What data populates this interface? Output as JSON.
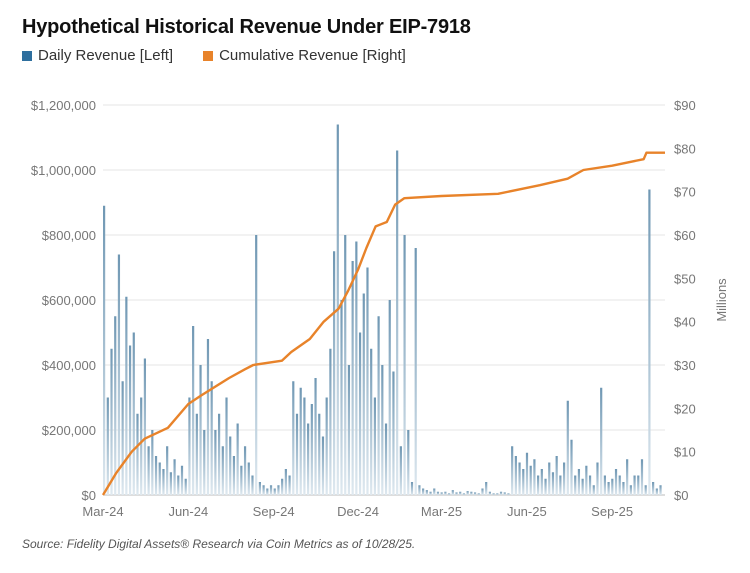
{
  "chart_data": {
    "type": "bar+line",
    "title": "Hypothetical Historical Revenue Under EIP-7918",
    "legend": {
      "placement": "top-left",
      "items": [
        {
          "label": "Daily Revenue [Left]",
          "color": "#2e6f9e"
        },
        {
          "label": "Cumulative Revenue [Right]",
          "color": "#e8832a"
        }
      ]
    },
    "left_axis": {
      "ylim": [
        0,
        1200000
      ],
      "ticks": [
        "$0",
        "$200,000",
        "$400,000",
        "$600,000",
        "$800,000",
        "$1,000,000",
        "$1,200,000"
      ]
    },
    "right_axis": {
      "ylim": [
        0,
        90
      ],
      "label": "Millions",
      "ticks": [
        "$0",
        "$10",
        "$20",
        "$30",
        "$40",
        "$50",
        "$60",
        "$70",
        "$80",
        "$90"
      ]
    },
    "x_axis": {
      "range": [
        "2024-03-01",
        "2025-10-28"
      ],
      "ticks": [
        {
          "label": "Mar-24",
          "date": "2024-03-01"
        },
        {
          "label": "Jun-24",
          "date": "2024-06-01"
        },
        {
          "label": "Sep-24",
          "date": "2024-09-01"
        },
        {
          "label": "Dec-24",
          "date": "2024-12-01"
        },
        {
          "label": "Mar-25",
          "date": "2025-03-01"
        },
        {
          "label": "Jun-25",
          "date": "2025-06-01"
        },
        {
          "label": "Sep-25",
          "date": "2025-09-01"
        }
      ]
    },
    "grid": "horizontal",
    "series": [
      {
        "name": "Daily Revenue [Left]",
        "type": "bar",
        "color": "#8fb2c9",
        "start_date": "2024-03-01",
        "step_days": 4,
        "unit": "USD thousands",
        "values": [
          890,
          300,
          450,
          550,
          740,
          350,
          610,
          460,
          500,
          250,
          300,
          420,
          150,
          200,
          120,
          100,
          80,
          150,
          70,
          110,
          60,
          90,
          50,
          300,
          520,
          250,
          400,
          200,
          480,
          350,
          200,
          250,
          150,
          300,
          180,
          120,
          220,
          90,
          150,
          100,
          60,
          800,
          40,
          30,
          20,
          30,
          20,
          30,
          50,
          80,
          60,
          350,
          250,
          330,
          300,
          220,
          280,
          360,
          250,
          180,
          300,
          450,
          750,
          1140,
          600,
          800,
          400,
          720,
          780,
          500,
          620,
          700,
          450,
          300,
          550,
          400,
          220,
          600,
          380,
          1060,
          150,
          800,
          200,
          40,
          760,
          30,
          20,
          15,
          10,
          20,
          10,
          8,
          10,
          5,
          15,
          8,
          10,
          5,
          12,
          10,
          8,
          5,
          20,
          40,
          10,
          5,
          5,
          10,
          8,
          5,
          150,
          120,
          100,
          80,
          130,
          90,
          110,
          60,
          80,
          50,
          100,
          70,
          120,
          60,
          100,
          290,
          170,
          60,
          80,
          50,
          90,
          60,
          30,
          100,
          330,
          60,
          40,
          50,
          80,
          60,
          40,
          110,
          30,
          60,
          60,
          110,
          30,
          940,
          40,
          20,
          30
        ]
      },
      {
        "name": "Cumulative Revenue [Right]",
        "type": "line",
        "color": "#e8832a",
        "unit": "USD millions",
        "points": [
          [
            "2024-03-01",
            0
          ],
          [
            "2024-03-15",
            5
          ],
          [
            "2024-04-01",
            10
          ],
          [
            "2024-04-15",
            13
          ],
          [
            "2024-05-10",
            15.5
          ],
          [
            "2024-06-01",
            21
          ],
          [
            "2024-06-15",
            23
          ],
          [
            "2024-07-15",
            27
          ],
          [
            "2024-08-01",
            29
          ],
          [
            "2024-08-10",
            30
          ],
          [
            "2024-09-10",
            31
          ],
          [
            "2024-09-20",
            33
          ],
          [
            "2024-10-10",
            36
          ],
          [
            "2024-10-25",
            40
          ],
          [
            "2024-11-10",
            43
          ],
          [
            "2024-11-20",
            47
          ],
          [
            "2024-12-01",
            52
          ],
          [
            "2024-12-10",
            57
          ],
          [
            "2024-12-20",
            62
          ],
          [
            "2025-01-01",
            63
          ],
          [
            "2025-01-10",
            67
          ],
          [
            "2025-01-20",
            68.5
          ],
          [
            "2025-03-01",
            69
          ],
          [
            "2025-05-01",
            69.5
          ],
          [
            "2025-06-15",
            71.5
          ],
          [
            "2025-07-15",
            73
          ],
          [
            "2025-08-01",
            75
          ],
          [
            "2025-09-01",
            76
          ],
          [
            "2025-10-05",
            77.5
          ],
          [
            "2025-10-08",
            79
          ],
          [
            "2025-10-28",
            79
          ]
        ]
      }
    ]
  },
  "source": "Source: Fidelity Digital Assets® Research via Coin Metrics as of 10/28/25."
}
